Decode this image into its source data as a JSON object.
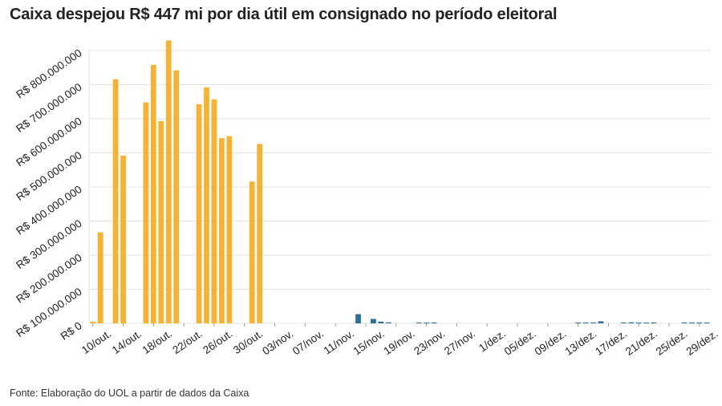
{
  "title": "Caixa despejou R$ 447 mi por dia útil em consignado no período eleitoral",
  "source": "Fonte: Elaboração do UOL a partir de dados da Caixa",
  "colors": {
    "election_period": "#f5b335",
    "post_election": "#2e6f96",
    "grid": "#e3e3e3"
  },
  "chart_data": {
    "type": "bar",
    "title": "Caixa despejou R$ 447 mi por dia útil em consignado no período eleitoral",
    "xlabel": "",
    "ylabel": "",
    "ylim": [
      0,
      800000000
    ],
    "y_ticks": [
      0,
      100000000,
      200000000,
      300000000,
      400000000,
      500000000,
      600000000,
      700000000,
      800000000
    ],
    "y_tick_labels": [
      "R$ 0",
      "R$ 100.000.000",
      "R$ 200.000.000",
      "R$ 300.000.000",
      "R$ 400.000.000",
      "R$ 500.000.000",
      "R$ 600.000.000",
      "R$ 700.000.000",
      "R$ 800.000.000"
    ],
    "x_start": "10/10",
    "x_tick_labels": [
      "10/out.",
      "14/out.",
      "18/out.",
      "22/out.",
      "26/out.",
      "30/out.",
      "03/nov.",
      "07/nov.",
      "11/nov.",
      "15/nov.",
      "19/nov.",
      "23/nov.",
      "27/nov.",
      "1/dez.",
      "05/dez.",
      "09/dez.",
      "13/dez.",
      "17/dez.",
      "21/dez.",
      "25/dez.",
      "29/dez."
    ],
    "grid": true,
    "legend": "none",
    "series": [
      {
        "color": "#f5b335",
        "points": [
          [
            "10/10",
            5000000
          ],
          [
            "11/10",
            267000000
          ],
          [
            "13/10",
            716000000
          ],
          [
            "14/10",
            492000000
          ],
          [
            "17/10",
            648000000
          ],
          [
            "18/10",
            758000000
          ],
          [
            "19/10",
            593000000
          ],
          [
            "20/10",
            830000000
          ],
          [
            "21/10",
            742000000
          ],
          [
            "24/10",
            643000000
          ],
          [
            "25/10",
            692000000
          ],
          [
            "26/10",
            657000000
          ],
          [
            "27/10",
            543000000
          ],
          [
            "28/10",
            549000000
          ],
          [
            "31/10",
            416000000
          ],
          [
            "01/11",
            526000000
          ]
        ]
      },
      {
        "color": "#2e6f96",
        "points": [
          [
            "14/11",
            27000000
          ],
          [
            "16/11",
            13000000
          ],
          [
            "17/11",
            5000000
          ],
          [
            "18/11",
            3000000
          ],
          [
            "22/11",
            2000000
          ],
          [
            "23/11",
            1500000
          ],
          [
            "24/11",
            1000000
          ],
          [
            "13/12",
            1000000
          ],
          [
            "14/12",
            1000000
          ],
          [
            "15/12",
            1000000
          ],
          [
            "16/12",
            6000000
          ],
          [
            "19/12",
            1000000
          ],
          [
            "20/12",
            3000000
          ],
          [
            "21/12",
            1500000
          ],
          [
            "22/12",
            1500000
          ],
          [
            "23/12",
            1000000
          ],
          [
            "27/12",
            1000000
          ],
          [
            "28/12",
            1000000
          ],
          [
            "29/12",
            1000000
          ],
          [
            "30/12",
            1000000
          ]
        ]
      }
    ]
  }
}
